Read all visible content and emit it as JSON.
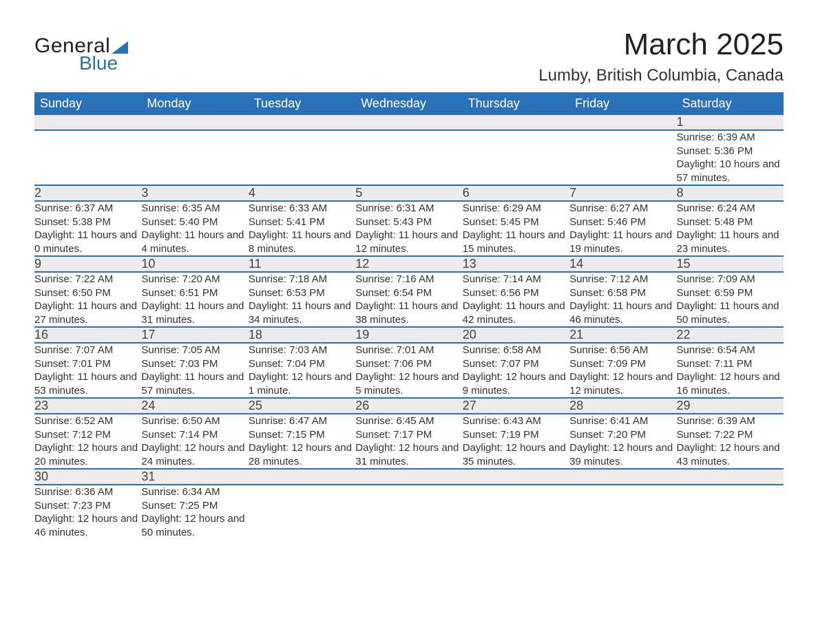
{
  "brand": {
    "part1": "General",
    "part2": "Blue"
  },
  "title": "March 2025",
  "location": "Lumby, British Columbia, Canada",
  "colors": {
    "header_bg": "#2b71b8",
    "header_text": "#ffffff",
    "daynum_bg": "#ececec",
    "border": "#2b71b8",
    "text": "#333333"
  },
  "weekdays": [
    "Sunday",
    "Monday",
    "Tuesday",
    "Wednesday",
    "Thursday",
    "Friday",
    "Saturday"
  ],
  "weeks": [
    [
      null,
      null,
      null,
      null,
      null,
      null,
      {
        "n": "1",
        "sr": "6:39 AM",
        "ss": "5:36 PM",
        "dl": "10 hours and 57 minutes."
      }
    ],
    [
      {
        "n": "2",
        "sr": "6:37 AM",
        "ss": "5:38 PM",
        "dl": "11 hours and 0 minutes."
      },
      {
        "n": "3",
        "sr": "6:35 AM",
        "ss": "5:40 PM",
        "dl": "11 hours and 4 minutes."
      },
      {
        "n": "4",
        "sr": "6:33 AM",
        "ss": "5:41 PM",
        "dl": "11 hours and 8 minutes."
      },
      {
        "n": "5",
        "sr": "6:31 AM",
        "ss": "5:43 PM",
        "dl": "11 hours and 12 minutes."
      },
      {
        "n": "6",
        "sr": "6:29 AM",
        "ss": "5:45 PM",
        "dl": "11 hours and 15 minutes."
      },
      {
        "n": "7",
        "sr": "6:27 AM",
        "ss": "5:46 PM",
        "dl": "11 hours and 19 minutes."
      },
      {
        "n": "8",
        "sr": "6:24 AM",
        "ss": "5:48 PM",
        "dl": "11 hours and 23 minutes."
      }
    ],
    [
      {
        "n": "9",
        "sr": "7:22 AM",
        "ss": "6:50 PM",
        "dl": "11 hours and 27 minutes."
      },
      {
        "n": "10",
        "sr": "7:20 AM",
        "ss": "6:51 PM",
        "dl": "11 hours and 31 minutes."
      },
      {
        "n": "11",
        "sr": "7:18 AM",
        "ss": "6:53 PM",
        "dl": "11 hours and 34 minutes."
      },
      {
        "n": "12",
        "sr": "7:16 AM",
        "ss": "6:54 PM",
        "dl": "11 hours and 38 minutes."
      },
      {
        "n": "13",
        "sr": "7:14 AM",
        "ss": "6:56 PM",
        "dl": "11 hours and 42 minutes."
      },
      {
        "n": "14",
        "sr": "7:12 AM",
        "ss": "6:58 PM",
        "dl": "11 hours and 46 minutes."
      },
      {
        "n": "15",
        "sr": "7:09 AM",
        "ss": "6:59 PM",
        "dl": "11 hours and 50 minutes."
      }
    ],
    [
      {
        "n": "16",
        "sr": "7:07 AM",
        "ss": "7:01 PM",
        "dl": "11 hours and 53 minutes."
      },
      {
        "n": "17",
        "sr": "7:05 AM",
        "ss": "7:03 PM",
        "dl": "11 hours and 57 minutes."
      },
      {
        "n": "18",
        "sr": "7:03 AM",
        "ss": "7:04 PM",
        "dl": "12 hours and 1 minute."
      },
      {
        "n": "19",
        "sr": "7:01 AM",
        "ss": "7:06 PM",
        "dl": "12 hours and 5 minutes."
      },
      {
        "n": "20",
        "sr": "6:58 AM",
        "ss": "7:07 PM",
        "dl": "12 hours and 9 minutes."
      },
      {
        "n": "21",
        "sr": "6:56 AM",
        "ss": "7:09 PM",
        "dl": "12 hours and 12 minutes."
      },
      {
        "n": "22",
        "sr": "6:54 AM",
        "ss": "7:11 PM",
        "dl": "12 hours and 16 minutes."
      }
    ],
    [
      {
        "n": "23",
        "sr": "6:52 AM",
        "ss": "7:12 PM",
        "dl": "12 hours and 20 minutes."
      },
      {
        "n": "24",
        "sr": "6:50 AM",
        "ss": "7:14 PM",
        "dl": "12 hours and 24 minutes."
      },
      {
        "n": "25",
        "sr": "6:47 AM",
        "ss": "7:15 PM",
        "dl": "12 hours and 28 minutes."
      },
      {
        "n": "26",
        "sr": "6:45 AM",
        "ss": "7:17 PM",
        "dl": "12 hours and 31 minutes."
      },
      {
        "n": "27",
        "sr": "6:43 AM",
        "ss": "7:19 PM",
        "dl": "12 hours and 35 minutes."
      },
      {
        "n": "28",
        "sr": "6:41 AM",
        "ss": "7:20 PM",
        "dl": "12 hours and 39 minutes."
      },
      {
        "n": "29",
        "sr": "6:39 AM",
        "ss": "7:22 PM",
        "dl": "12 hours and 43 minutes."
      }
    ],
    [
      {
        "n": "30",
        "sr": "6:36 AM",
        "ss": "7:23 PM",
        "dl": "12 hours and 46 minutes."
      },
      {
        "n": "31",
        "sr": "6:34 AM",
        "ss": "7:25 PM",
        "dl": "12 hours and 50 minutes."
      },
      null,
      null,
      null,
      null,
      null
    ]
  ],
  "labels": {
    "sunrise": "Sunrise: ",
    "sunset": "Sunset: ",
    "daylight": "Daylight: "
  }
}
